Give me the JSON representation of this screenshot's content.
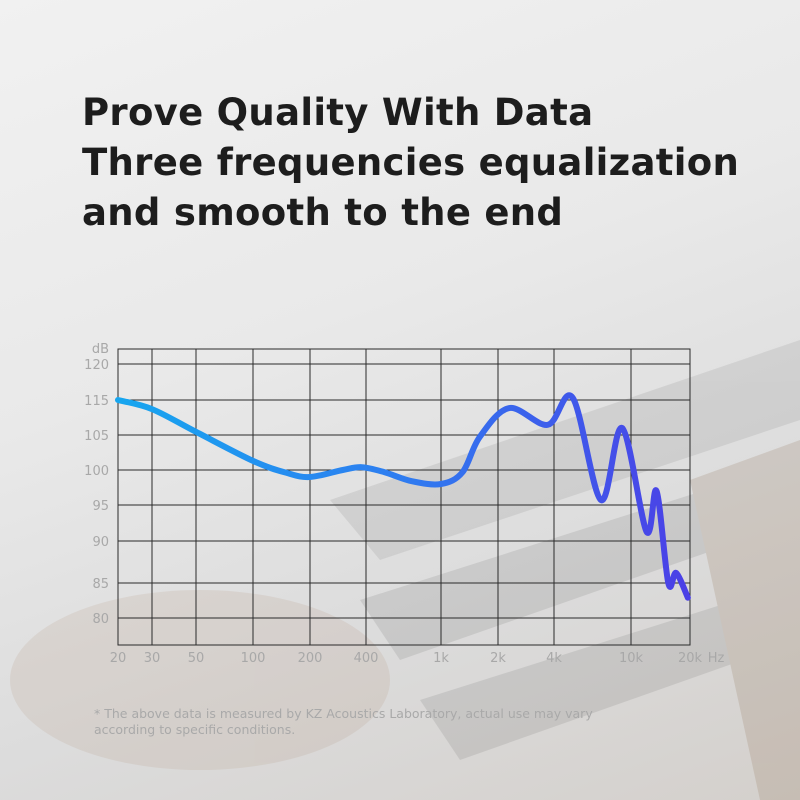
{
  "headline": {
    "lines": [
      "Prove Quality With Data",
      "Three frequencies equalization",
      "and smooth to the end"
    ]
  },
  "chart_data": {
    "type": "line",
    "title": "",
    "xlabel": "Hz",
    "ylabel": "dB",
    "x_scale": "log",
    "x_ticks": [
      20,
      30,
      50,
      100,
      200,
      400,
      1000,
      2000,
      4000,
      10000,
      20000
    ],
    "x_tick_labels": [
      "20",
      "30",
      "50",
      "100",
      "200",
      "400",
      "1k",
      "2k",
      "4k",
      "10k",
      "20k"
    ],
    "y_ticks": [
      120,
      115,
      105,
      100,
      95,
      90,
      85,
      80
    ],
    "y_tick_labels": [
      "120",
      "115",
      "105",
      "100",
      "95",
      "90",
      "85",
      "80"
    ],
    "grid": true,
    "series": [
      {
        "x": [
          20,
          30,
          50,
          100,
          150,
          200,
          300,
          380,
          500,
          700,
          1000,
          1300,
          1600,
          2300,
          3700,
          5000,
          7000,
          9000,
          12000,
          13500,
          15500,
          17000,
          19500
        ],
        "y": [
          115,
          112.4,
          105.9,
          101.3,
          99.6,
          99,
          100,
          100.4,
          99.7,
          98.4,
          98,
          99.7,
          104.7,
          112.7,
          107.9,
          115.3,
          95.7,
          107,
          91.3,
          97,
          85,
          86.2,
          82.9
        ]
      }
    ],
    "colors": {
      "line_start": "#17a6ef",
      "line_end": "#4b3fe6",
      "grid": "#2a2a2a",
      "tick_label": "#a8a8a8"
    }
  },
  "footnote": {
    "lines": [
      "* The above data is measured by KZ Acoustics Laboratory, actual use may vary",
      "according to specific conditions."
    ]
  }
}
